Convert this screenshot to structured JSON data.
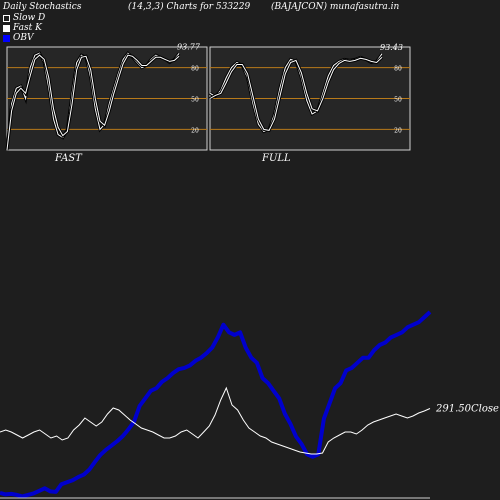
{
  "header": {
    "left": "Daily Stochastics",
    "mid": "(14,3,3) Charts for 533229",
    "right": "(BAJAJCON) munafasutra.in"
  },
  "legend": [
    {
      "label": "Slow  D",
      "color": "#ffffff",
      "style": "hollow"
    },
    {
      "label": "Fast K",
      "color": "#ffffff",
      "style": "filled"
    },
    {
      "label": "OBV",
      "color": "#0000ff",
      "style": "filled"
    }
  ],
  "panels": {
    "fast_label": "FAST",
    "full_label": "FULL"
  },
  "colors": {
    "background": "#1e1e1e",
    "panel_bg": "#262626",
    "level_line": "#b87a1a",
    "obv": "#0000cc",
    "price": "#ffffff"
  },
  "chart_data": [
    {
      "type": "line",
      "name": "fast-stochastics",
      "ylim": [
        0,
        100
      ],
      "levels": [
        20,
        50,
        80
      ],
      "level_labels": [
        "20",
        "50",
        "80"
      ],
      "last_value_label": "93.77",
      "series": [
        {
          "values": [
            0,
            45,
            60,
            62,
            50,
            80,
            92,
            94,
            85,
            60,
            30,
            15,
            12,
            20,
            55,
            85,
            92,
            90,
            70,
            40,
            20,
            25,
            45,
            60,
            75,
            88,
            94,
            90,
            85,
            80,
            82,
            88,
            92,
            90,
            88,
            85,
            88,
            93.77
          ]
        },
        {
          "values": [
            0,
            38,
            55,
            60,
            55,
            72,
            88,
            92,
            88,
            70,
            40,
            22,
            14,
            18,
            45,
            78,
            90,
            91,
            78,
            50,
            28,
            24,
            38,
            55,
            70,
            84,
            92,
            91,
            87,
            82,
            82,
            86,
            90,
            90,
            88,
            86,
            87,
            91
          ]
        }
      ]
    },
    {
      "type": "line",
      "name": "full-stochastics",
      "ylim": [
        0,
        100
      ],
      "levels": [
        20,
        50,
        80
      ],
      "level_labels": [
        "20",
        "50",
        "80"
      ],
      "last_value_label": "93.43",
      "series": [
        {
          "values": [
            55,
            52,
            58,
            70,
            80,
            85,
            82,
            70,
            45,
            25,
            18,
            20,
            35,
            60,
            80,
            88,
            86,
            70,
            48,
            35,
            38,
            55,
            72,
            82,
            86,
            88,
            87,
            88,
            90,
            88,
            85,
            86,
            93.43
          ]
        },
        {
          "values": [
            50,
            53,
            55,
            65,
            76,
            83,
            83,
            74,
            52,
            30,
            20,
            19,
            30,
            52,
            74,
            85,
            87,
            75,
            55,
            40,
            38,
            50,
            66,
            78,
            84,
            87,
            86,
            87,
            89,
            88,
            86,
            85,
            90
          ]
        }
      ]
    },
    {
      "type": "line",
      "name": "obv-and-price",
      "close_label": "291.50",
      "close_text": "Close",
      "series": [
        {
          "name": "OBV",
          "values": [
            28,
            22,
            24,
            20,
            14,
            20,
            26,
            36,
            46,
            34,
            32,
            62,
            70,
            78,
            90,
            100,
            120,
            150,
            178,
            198,
            215,
            232,
            252,
            278,
            308,
            370,
            400,
            430,
            440,
            465,
            480,
            500,
            515,
            520,
            530,
            548,
            560,
            578,
            600,
            640,
            690,
            660,
            650,
            660,
            600,
            560,
            540,
            480,
            460,
            430,
            400,
            340,
            300,
            250,
            220,
            180,
            170,
            180,
            320,
            380,
            440,
            460,
            510,
            520,
            540,
            560,
            560,
            590,
            610,
            620,
            640,
            650,
            660,
            680,
            690,
            700,
            720,
            740
          ]
        },
        {
          "name": "Close",
          "values": [
            268,
            270,
            268,
            265,
            262,
            265,
            268,
            270,
            266,
            262,
            264,
            260,
            262,
            270,
            275,
            282,
            278,
            274,
            278,
            286,
            292,
            290,
            285,
            280,
            276,
            272,
            270,
            268,
            265,
            262,
            262,
            264,
            268,
            270,
            266,
            262,
            268,
            274,
            285,
            300,
            312,
            295,
            290,
            280,
            272,
            268,
            264,
            262,
            258,
            256,
            254,
            252,
            250,
            248,
            247,
            246,
            246,
            247,
            258,
            262,
            265,
            268,
            268,
            266,
            270,
            275,
            278,
            280,
            282,
            284,
            286,
            284,
            282,
            284,
            287,
            289,
            291.5
          ]
        }
      ]
    }
  ]
}
